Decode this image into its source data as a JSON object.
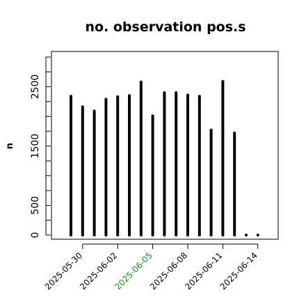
{
  "chart_data": {
    "type": "bar",
    "title": "no. observation pos.s",
    "xlabel": "",
    "ylabel": "n",
    "x": [
      "2025-05-29",
      "2025-05-30",
      "2025-05-31",
      "2025-06-01",
      "2025-06-02",
      "2025-06-03",
      "2025-06-04",
      "2025-06-05",
      "2025-06-06",
      "2025-06-07",
      "2025-06-08",
      "2025-06-09",
      "2025-06-10",
      "2025-06-11",
      "2025-06-12",
      "2025-06-13",
      "2025-06-14"
    ],
    "values": [
      2340,
      2160,
      2090,
      2290,
      2330,
      2350,
      2580,
      2010,
      2400,
      2400,
      2360,
      2340,
      1770,
      2590,
      1720,
      0,
      0
    ],
    "ylim": [
      0,
      3000
    ],
    "yticks": [
      0,
      500,
      1500,
      2500
    ],
    "xticks": [
      {
        "label": "2025-05-30",
        "index": 1,
        "color": "#000000"
      },
      {
        "label": "2025-06-02",
        "index": 4,
        "color": "#000000"
      },
      {
        "label": "2025-06-05",
        "index": 7,
        "color": "#228B22"
      },
      {
        "label": "2025-06-08",
        "index": 10,
        "color": "#000000"
      },
      {
        "label": "2025-06-11",
        "index": 13,
        "color": "#000000"
      },
      {
        "label": "2025-06-14",
        "index": 16,
        "color": "#000000"
      }
    ],
    "grid": false
  }
}
